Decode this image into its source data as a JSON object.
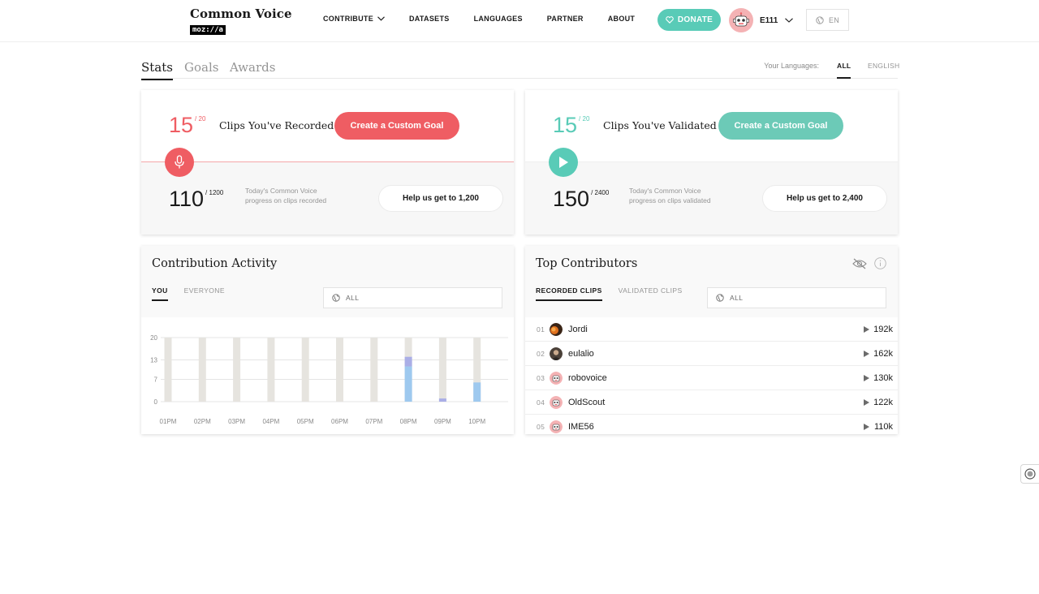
{
  "header": {
    "logo_title": "Common Voice",
    "logo_sub": "moz://a",
    "nav": [
      {
        "label": "CONTRIBUTE",
        "has_dropdown": true
      },
      {
        "label": "DATASETS"
      },
      {
        "label": "LANGUAGES"
      },
      {
        "label": "PARTNER"
      },
      {
        "label": "ABOUT"
      }
    ],
    "donate_label": "DONATE",
    "user_name": "E111",
    "locale_label": "EN"
  },
  "page_tabs": [
    "Stats",
    "Goals",
    "Awards"
  ],
  "your_languages_label": "Your Languages:",
  "language_tabs": [
    "ALL",
    "ENGLISH"
  ],
  "recorded": {
    "count": "15",
    "goal": "/ 20",
    "label": "Clips You've Recorded",
    "button": "Create a Custom Goal",
    "progress": "110",
    "progress_total": "/ 1200",
    "progress_text": "Today's Common Voice progress on clips recorded",
    "help_button": "Help us get to 1,200"
  },
  "validated": {
    "count": "15",
    "goal": "/ 20",
    "label": "Clips You've Validated",
    "button": "Create a Custom Goal",
    "progress": "150",
    "progress_total": "/ 2400",
    "progress_text": "Today's Common Voice progress on clips validated",
    "help_button": "Help us get to 2,400"
  },
  "activity": {
    "title": "Contribution Activity",
    "tabs": [
      "YOU",
      "EVERYONE"
    ],
    "select_label": "ALL"
  },
  "contributors": {
    "title": "Top Contributors",
    "tabs": [
      "RECORDED CLIPS",
      "VALIDATED CLIPS"
    ],
    "select_label": "ALL",
    "rows": [
      {
        "rank": "01",
        "name": "Jordi",
        "count": "192k",
        "avatar": "photo-dark"
      },
      {
        "rank": "02",
        "name": "eulalio",
        "count": "162k",
        "avatar": "photo-person"
      },
      {
        "rank": "03",
        "name": "robovoice",
        "count": "130k",
        "avatar": "robot"
      },
      {
        "rank": "04",
        "name": "OldScout",
        "count": "122k",
        "avatar": "robot"
      },
      {
        "rank": "05",
        "name": "IME56",
        "count": "110k",
        "avatar": "robot"
      }
    ]
  },
  "colors": {
    "record": "#ef5d63",
    "validate": "#59cbb7",
    "bar_track": "#e6e4df",
    "bar_blue": "#9ec9ef",
    "bar_purple": "#aaaee6",
    "bar_teal": "#6ccab7"
  },
  "chart_data": {
    "type": "bar",
    "categories": [
      "01PM",
      "02PM",
      "03PM",
      "04PM",
      "05PM",
      "06PM",
      "07PM",
      "08PM",
      "09PM",
      "10PM"
    ],
    "y_ticks": [
      "0",
      "7",
      "13",
      "20"
    ],
    "ylim": [
      0,
      20
    ],
    "series": [
      {
        "values": [
          0,
          0,
          0,
          0,
          0,
          0,
          0,
          11,
          0,
          6
        ],
        "color": "#9ec9ef"
      },
      {
        "values": [
          0,
          0,
          0,
          0,
          0,
          0,
          0,
          3,
          1,
          0
        ],
        "color": "#aaaee6"
      }
    ],
    "grid": true
  }
}
